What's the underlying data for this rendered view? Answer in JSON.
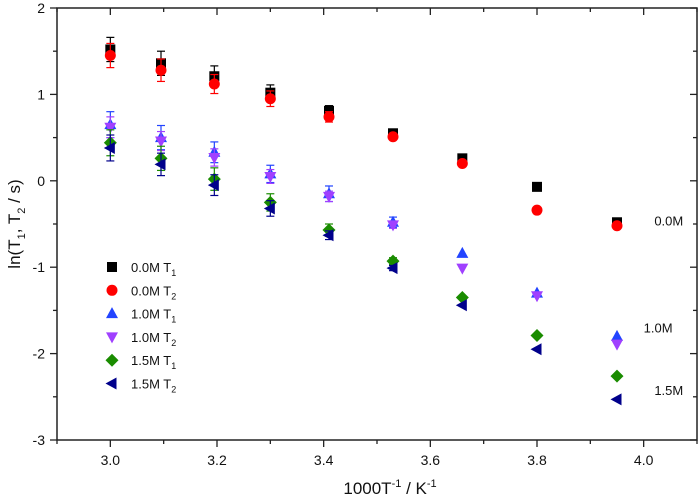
{
  "chart_data": {
    "type": "scatter",
    "title": "",
    "xlabel": {
      "main": "1000T",
      "sup1": "-1",
      "mid": " / K",
      "sup2": "-1"
    },
    "ylabel": {
      "pre": "ln(T",
      "sub1": "1",
      "mid": ", T",
      "sub2": "2",
      "post": " / s)"
    },
    "xlim": [
      2.9,
      4.1
    ],
    "ylim": [
      -3,
      2
    ],
    "xticks": [
      "3.0",
      "3.2",
      "3.4",
      "3.6",
      "3.8",
      "4.0"
    ],
    "yticks": [
      "-3",
      "-2",
      "-1",
      "0",
      "1",
      "2"
    ],
    "grid": false,
    "legend_position": "lower-left",
    "x": [
      3.0,
      3.095,
      3.195,
      3.3,
      3.41,
      3.53,
      3.66,
      3.8,
      3.95
    ],
    "series": [
      {
        "name": "0.0M T",
        "sub": "1",
        "marker": "square",
        "color": "#000000",
        "values": [
          1.52,
          1.36,
          1.21,
          1.02,
          0.81,
          0.55,
          0.26,
          -0.07,
          -0.48
        ],
        "errors": [
          0.14,
          0.14,
          0.12,
          0.09,
          0.06,
          0.03,
          0,
          0,
          0
        ]
      },
      {
        "name": "0.0M T",
        "sub": "2",
        "marker": "circle",
        "color": "#ff0000",
        "values": [
          1.45,
          1.28,
          1.12,
          0.95,
          0.74,
          0.51,
          0.2,
          -0.34,
          -0.52
        ],
        "errors": [
          0.14,
          0.13,
          0.11,
          0.09,
          0.06,
          0.03,
          0,
          0,
          0
        ]
      },
      {
        "name": "1.0M T",
        "sub": "1",
        "marker": "triangle-up",
        "color": "#2244ff",
        "values": [
          0.65,
          0.5,
          0.33,
          0.08,
          -0.15,
          -0.48,
          -0.84,
          -1.3,
          -1.8
        ],
        "errors": [
          0.15,
          0.14,
          0.12,
          0.1,
          0.09,
          0.06,
          0,
          0,
          0
        ]
      },
      {
        "name": "1.0M T",
        "sub": "2",
        "marker": "triangle-down",
        "color": "#a040ff",
        "values": [
          0.62,
          0.46,
          0.27,
          0.05,
          -0.18,
          -0.51,
          -1.01,
          -1.33,
          -1.89
        ],
        "errors": [
          0.12,
          0.11,
          0.1,
          0.08,
          0.06,
          0.04,
          0,
          0,
          0
        ]
      },
      {
        "name": "1.5M T",
        "sub": "1",
        "marker": "diamond",
        "color": "#1a8c00",
        "values": [
          0.44,
          0.26,
          0.02,
          -0.25,
          -0.57,
          -0.93,
          -1.35,
          -1.79,
          -2.26
        ],
        "errors": [
          0.15,
          0.14,
          0.13,
          0.1,
          0.07,
          0.04,
          0,
          0,
          0
        ]
      },
      {
        "name": "1.5M T",
        "sub": "2",
        "marker": "triangle-left",
        "color": "#00008b",
        "values": [
          0.38,
          0.19,
          -0.05,
          -0.32,
          -0.63,
          -1.01,
          -1.44,
          -1.95,
          -2.53
        ],
        "errors": [
          0.15,
          0.13,
          0.12,
          0.09,
          0.05,
          0.03,
          0,
          0,
          0
        ]
      }
    ],
    "annotations": [
      {
        "text": "0.0M",
        "x": 4.02,
        "y": -0.46
      },
      {
        "text": "1.0M",
        "x": 4.0,
        "y": -1.7
      },
      {
        "text": "1.5M",
        "x": 4.02,
        "y": -2.42
      }
    ]
  }
}
